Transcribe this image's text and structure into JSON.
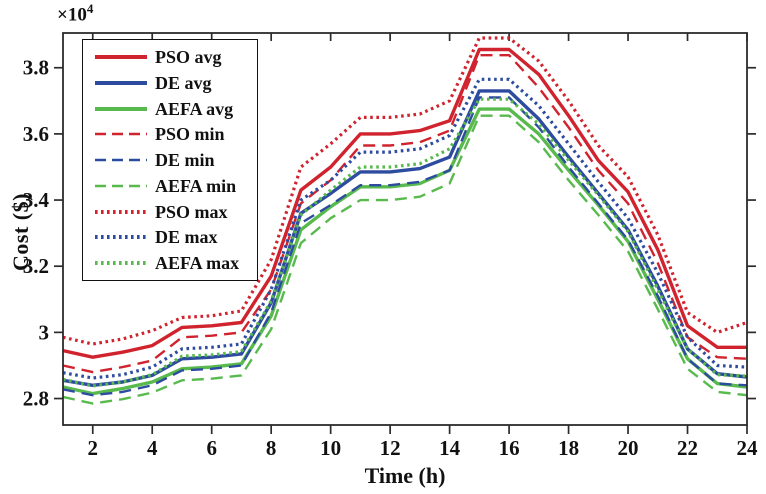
{
  "figure": {
    "y_multiplier_base": "×10",
    "y_multiplier_exp": "4",
    "xlabel": "Time (h)",
    "ylabel": "Cost ($)"
  },
  "chart_data": {
    "type": "line",
    "title": "",
    "xlabel": "Time (h)",
    "ylabel": "Cost ($)",
    "y_scale_note": "×10^4",
    "grid": false,
    "legend_position": "top-left",
    "xlim": [
      1,
      24
    ],
    "ylim": [
      2.72,
      3.905
    ],
    "xticks": [
      2,
      4,
      6,
      8,
      10,
      12,
      14,
      16,
      18,
      20,
      22,
      24
    ],
    "yticks": [
      2.8,
      3.0,
      3.2,
      3.4,
      3.6,
      3.8
    ],
    "ytick_labels": [
      "2.8",
      "3",
      "3.2",
      "3.4",
      "3.6",
      "3.8"
    ],
    "x": [
      1,
      2,
      3,
      4,
      5,
      6,
      7,
      8,
      9,
      10,
      11,
      12,
      13,
      14,
      15,
      16,
      17,
      18,
      19,
      20,
      21,
      22,
      23,
      24
    ],
    "colors": {
      "pso": "#d0232e",
      "de": "#2e4c9f",
      "aefa": "#58ba4d"
    },
    "series": [
      {
        "name": "PSO avg",
        "color": "#d0232e",
        "style": "solid",
        "values": [
          2.945,
          2.925,
          2.94,
          2.96,
          3.015,
          3.02,
          3.03,
          3.17,
          3.43,
          3.5,
          3.6,
          3.6,
          3.61,
          3.64,
          3.855,
          3.855,
          3.78,
          3.655,
          3.52,
          3.425,
          3.25,
          3.02,
          2.955,
          2.955
        ]
      },
      {
        "name": "DE avg",
        "color": "#2e4c9f",
        "style": "solid",
        "values": [
          2.855,
          2.84,
          2.85,
          2.87,
          2.92,
          2.925,
          2.935,
          3.09,
          3.36,
          3.42,
          3.485,
          3.485,
          3.495,
          3.53,
          3.73,
          3.73,
          3.645,
          3.53,
          3.42,
          3.31,
          3.14,
          2.95,
          2.875,
          2.865
        ]
      },
      {
        "name": "AEFA avg",
        "color": "#58ba4d",
        "style": "solid",
        "values": [
          2.835,
          2.815,
          2.83,
          2.85,
          2.89,
          2.895,
          2.905,
          3.05,
          3.31,
          3.38,
          3.44,
          3.44,
          3.45,
          3.49,
          3.675,
          3.675,
          3.6,
          3.49,
          3.385,
          3.275,
          3.1,
          2.92,
          2.845,
          2.835
        ]
      },
      {
        "name": "PSO min",
        "color": "#d0232e",
        "style": "dashed",
        "values": [
          2.9,
          2.88,
          2.895,
          2.915,
          2.985,
          2.99,
          3.0,
          3.13,
          3.39,
          3.46,
          3.565,
          3.565,
          3.575,
          3.61,
          3.838,
          3.838,
          3.74,
          3.62,
          3.49,
          3.39,
          3.21,
          2.985,
          2.925,
          2.92
        ]
      },
      {
        "name": "DE min",
        "color": "#2e4c9f",
        "style": "dashed",
        "values": [
          2.828,
          2.81,
          2.82,
          2.84,
          2.885,
          2.89,
          2.9,
          3.06,
          3.33,
          3.385,
          3.445,
          3.445,
          3.455,
          3.49,
          3.71,
          3.71,
          3.62,
          3.5,
          3.39,
          3.28,
          3.11,
          2.92,
          2.845,
          2.84
        ]
      },
      {
        "name": "AEFA min",
        "color": "#58ba4d",
        "style": "dashed",
        "values": [
          2.805,
          2.785,
          2.798,
          2.818,
          2.855,
          2.86,
          2.87,
          3.01,
          3.27,
          3.345,
          3.4,
          3.4,
          3.41,
          3.45,
          3.655,
          3.655,
          3.575,
          3.46,
          3.355,
          3.245,
          3.07,
          2.89,
          2.82,
          2.81
        ]
      },
      {
        "name": "PSO max",
        "color": "#d0232e",
        "style": "dotted",
        "values": [
          2.985,
          2.965,
          2.98,
          3.005,
          3.045,
          3.05,
          3.065,
          3.22,
          3.5,
          3.57,
          3.65,
          3.65,
          3.66,
          3.7,
          3.89,
          3.89,
          3.82,
          3.7,
          3.565,
          3.47,
          3.295,
          3.06,
          3.0,
          3.03
        ]
      },
      {
        "name": "DE max",
        "color": "#2e4c9f",
        "style": "dotted",
        "values": [
          2.878,
          2.862,
          2.872,
          2.895,
          2.95,
          2.955,
          2.965,
          3.13,
          3.4,
          3.46,
          3.545,
          3.545,
          3.555,
          3.595,
          3.765,
          3.765,
          3.685,
          3.57,
          3.455,
          3.345,
          3.18,
          2.985,
          2.9,
          2.895
        ]
      },
      {
        "name": "AEFA max",
        "color": "#58ba4d",
        "style": "dotted",
        "values": [
          2.858,
          2.838,
          2.85,
          2.872,
          2.928,
          2.932,
          2.942,
          3.095,
          3.355,
          3.43,
          3.5,
          3.5,
          3.51,
          3.555,
          3.705,
          3.705,
          3.63,
          3.52,
          3.415,
          3.305,
          3.13,
          2.95,
          2.872,
          2.868
        ]
      }
    ]
  }
}
